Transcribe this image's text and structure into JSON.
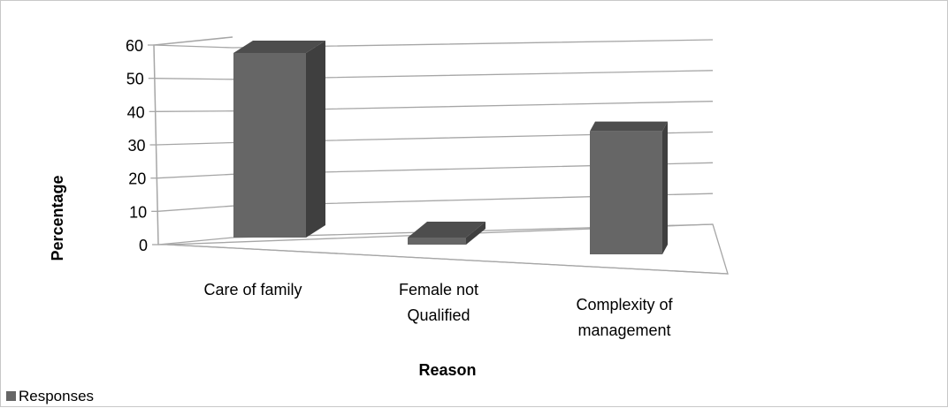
{
  "chart_data": {
    "type": "bar",
    "style": "3d-column",
    "xlabel": "Reason",
    "ylabel": "Percentage",
    "ylim": [
      0,
      60
    ],
    "yticks": [
      0,
      10,
      20,
      30,
      40,
      50,
      60
    ],
    "categories": [
      "Care of family",
      "Female not Qualified",
      "Complexity of management"
    ],
    "category_lines": [
      [
        "Care of family"
      ],
      [
        "Female not",
        "Qualified"
      ],
      [
        "Complexity of",
        "management"
      ]
    ],
    "series": [
      {
        "name": "Responses",
        "values": [
          57,
          2,
          38
        ],
        "color": "#666666"
      }
    ],
    "legend": {
      "position": "bottom-left",
      "label": "Responses"
    },
    "grid": true,
    "colors": {
      "bar_front": "#666666",
      "bar_side": "#3f3f3f",
      "bar_top": "#4d4d4d",
      "grid": "#a6a6a6"
    }
  }
}
